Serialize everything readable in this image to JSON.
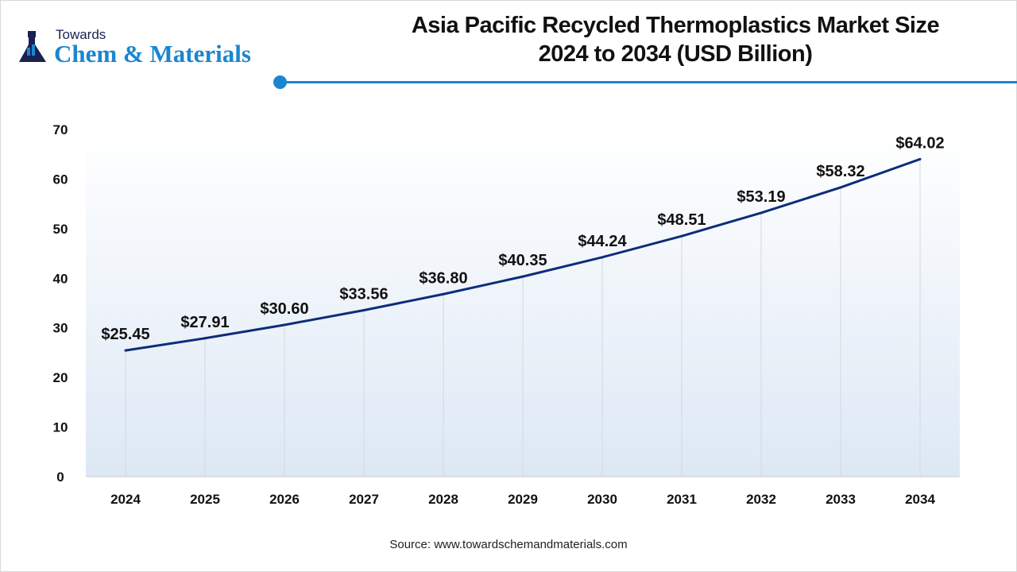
{
  "logo": {
    "line1": "Towards",
    "line2": "Chem & Materials"
  },
  "title_line1": "Asia Pacific Recycled Thermoplastics Market Size",
  "title_line2": "2024 to 2034 (USD Billion)",
  "source": "Source: www.towardschemandmaterials.com",
  "colors": {
    "line": "#0d2d7a",
    "accent": "#1a86d0"
  },
  "chart_data": {
    "type": "line",
    "title": "Asia Pacific Recycled Thermoplastics Market Size 2024 to 2034 (USD Billion)",
    "xlabel": "",
    "ylabel": "",
    "categories": [
      "2024",
      "2025",
      "2026",
      "2027",
      "2028",
      "2029",
      "2030",
      "2031",
      "2032",
      "2033",
      "2034"
    ],
    "values": [
      25.45,
      27.91,
      30.6,
      33.56,
      36.8,
      40.35,
      44.24,
      48.51,
      53.19,
      58.32,
      64.02
    ],
    "data_labels": [
      "$25.45",
      "$27.91",
      "$30.60",
      "$33.56",
      "$36.80",
      "$40.35",
      "$44.24",
      "$48.51",
      "$53.19",
      "$58.32",
      "$64.02"
    ],
    "yticks": [
      0,
      10,
      20,
      30,
      40,
      50,
      60,
      70
    ],
    "ylim": [
      0,
      70
    ],
    "grid": "vertical"
  }
}
